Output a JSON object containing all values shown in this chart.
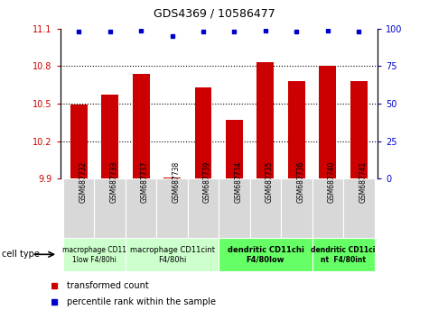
{
  "title": "GDS4369 / 10586477",
  "samples": [
    "GSM687732",
    "GSM687733",
    "GSM687737",
    "GSM687738",
    "GSM687739",
    "GSM687734",
    "GSM687735",
    "GSM687736",
    "GSM687740",
    "GSM687741"
  ],
  "bar_values": [
    10.49,
    10.57,
    10.74,
    9.91,
    10.63,
    10.37,
    10.83,
    10.68,
    10.8,
    10.68
  ],
  "percentile_values": [
    98,
    98,
    99,
    95,
    98,
    98,
    99,
    98,
    99,
    98
  ],
  "ylim_left": [
    9.9,
    11.1
  ],
  "ylim_right": [
    0,
    100
  ],
  "yticks_left": [
    9.9,
    10.2,
    10.5,
    10.8,
    11.1
  ],
  "yticks_right": [
    0,
    25,
    50,
    75,
    100
  ],
  "bar_color": "#cc0000",
  "dot_color": "#0000cc",
  "bg_color": "#ffffff",
  "grid_yticks": [
    10.2,
    10.5,
    10.8
  ],
  "cell_groups": [
    {
      "label": "macrophage CD11\n1low F4/80hi",
      "start": 0,
      "end": 2,
      "bg": "#ccffcc"
    },
    {
      "label": "macrophage CD11cint\nF4/80hi",
      "start": 2,
      "end": 5,
      "bg": "#ccffcc"
    },
    {
      "label": "dendritic CD11chi\nF4/80low",
      "start": 5,
      "end": 8,
      "bg": "#66ff66"
    },
    {
      "label": "dendritic CD11ci\nnt  F4/80int",
      "start": 8,
      "end": 10,
      "bg": "#66ff66"
    }
  ],
  "legend_bar_label": "transformed count",
  "legend_dot_label": "percentile rank within the sample",
  "cell_type_label": "cell type"
}
